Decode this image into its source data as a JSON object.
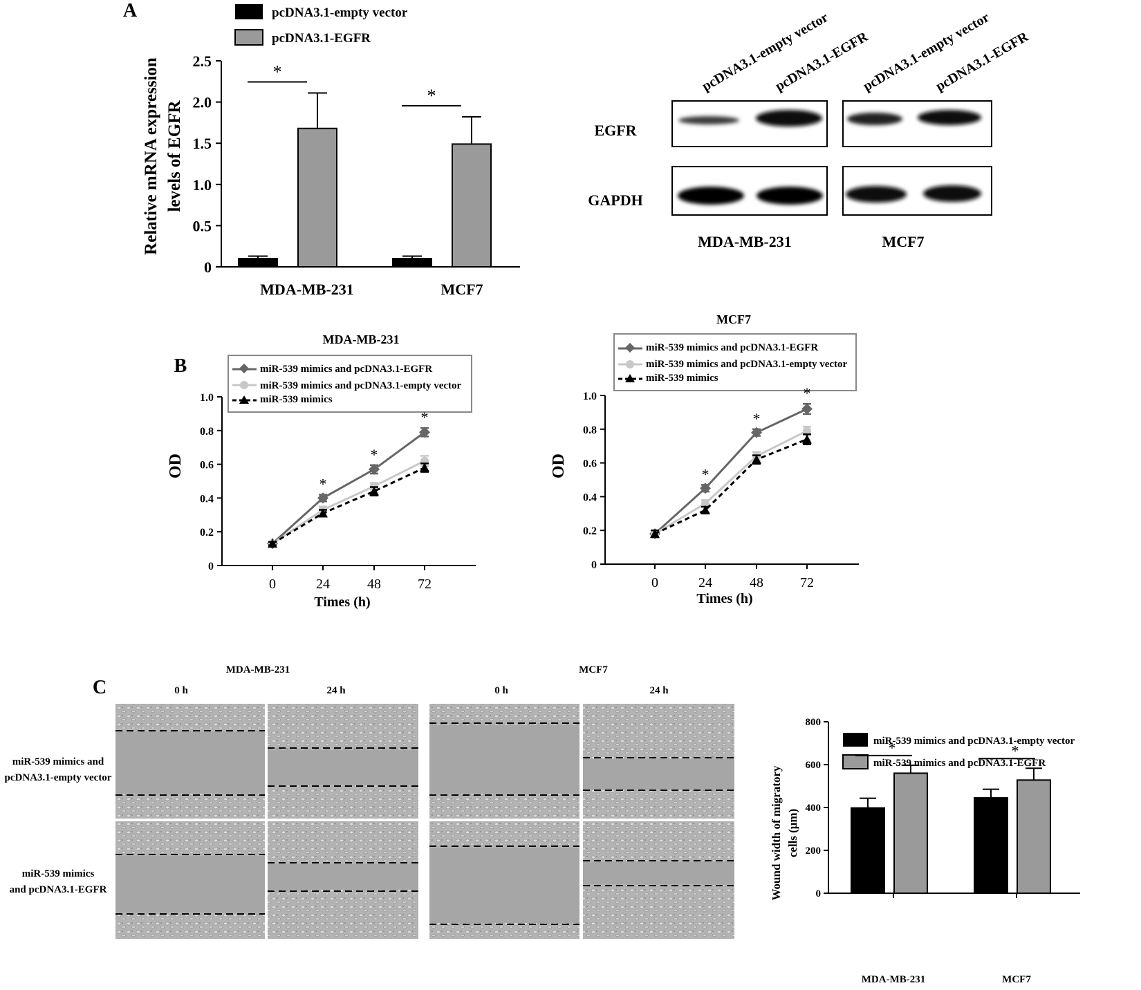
{
  "panel_labels": {
    "a": "A",
    "b": "B",
    "c": "C"
  },
  "colors": {
    "black": "#000000",
    "gray_bar": "#9a9a9a",
    "dark_gray_line": "#666666",
    "light_gray_line": "#c8c8c8"
  },
  "panelA_blot": {
    "lanes": [
      "pcDNA3.1-empty vector",
      "pcDNA3.1-EGFR",
      "pcDNA3.1-empty vector",
      "pcDNA3.1-EGFR"
    ],
    "rows": [
      "EGFR",
      "GAPDH"
    ],
    "groups": [
      "MDA-MB-231",
      "MCF7"
    ]
  },
  "panelC_images": {
    "group_titles": [
      "MDA-MB-231",
      "MCF7"
    ],
    "time_labels": [
      "0 h",
      "24 h",
      "0 h",
      "24 h"
    ],
    "row_labels": [
      [
        "miR-539 mimics and",
        "pcDNA3.1-empty vector"
      ],
      [
        "miR-539 mimics",
        "and pcDNA3.1-EGFR"
      ]
    ]
  },
  "chart_data": [
    {
      "id": "A-bar",
      "type": "bar",
      "title": "",
      "categories": [
        "MDA-MB-231",
        "MCF7"
      ],
      "series": [
        {
          "name": "pcDNA3.1-empty vector",
          "values": [
            0.1,
            0.1
          ],
          "errors": [
            0.03,
            0.03
          ]
        },
        {
          "name": "pcDNA3.1-EGFR",
          "values": [
            1.68,
            1.49
          ],
          "errors": [
            0.43,
            0.33
          ]
        }
      ],
      "ylabel_lines": [
        "Relative mRNA expression",
        "levels of EGFR"
      ],
      "ylim": [
        0,
        2.5
      ],
      "yticks": [
        "0",
        "0.5",
        "1.0",
        "1.5",
        "2.0",
        "2.5"
      ],
      "significance": [
        "*",
        "*"
      ]
    },
    {
      "id": "B-line-mda",
      "type": "line",
      "title": "MDA-MB-231",
      "x": [
        "0",
        "24",
        "48",
        "72"
      ],
      "xlabel": "Times (h)",
      "ylabel": "OD",
      "ylim": [
        0,
        1.0
      ],
      "yticks": [
        "0",
        "0.2",
        "0.4",
        "0.6",
        "0.8",
        "1.0"
      ],
      "series": [
        {
          "name": "miR-539 mimics and pcDNA3.1-EGFR",
          "values": [
            0.13,
            0.4,
            0.57,
            0.79
          ],
          "errors": [
            0.01,
            0.02,
            0.025,
            0.025
          ]
        },
        {
          "name": "miR-539 mimics and pcDNA3.1-empty vector",
          "values": [
            0.13,
            0.33,
            0.47,
            0.62
          ],
          "errors": [
            0.01,
            0.02,
            0.02,
            0.03
          ]
        },
        {
          "name": "miR-539 mimics",
          "values": [
            0.13,
            0.31,
            0.44,
            0.58
          ],
          "errors": [
            0.01,
            0.02,
            0.025,
            0.025
          ]
        }
      ],
      "significance": [
        "",
        "*",
        "*",
        "*"
      ],
      "legend": "top-left"
    },
    {
      "id": "B-line-mcf7",
      "type": "line",
      "title": "MCF7",
      "x": [
        "0",
        "24",
        "48",
        "72"
      ],
      "xlabel": "Times (h)",
      "ylabel": "OD",
      "ylim": [
        0,
        1.0
      ],
      "yticks": [
        "0",
        "0.2",
        "0.4",
        "0.6",
        "0.8",
        "1.0"
      ],
      "series": [
        {
          "name": "miR-539 mimics and pcDNA3.1-EGFR",
          "values": [
            0.18,
            0.45,
            0.78,
            0.92
          ],
          "errors": [
            0.02,
            0.02,
            0.02,
            0.03
          ]
        },
        {
          "name": "miR-539 mimics and pcDNA3.1-empty vector",
          "values": [
            0.18,
            0.36,
            0.64,
            0.79
          ],
          "errors": [
            0.02,
            0.02,
            0.025,
            0.025
          ]
        },
        {
          "name": "miR-539 mimics",
          "values": [
            0.18,
            0.32,
            0.62,
            0.74
          ],
          "errors": [
            0.02,
            0.02,
            0.025,
            0.03
          ]
        }
      ],
      "significance": [
        "",
        "*",
        "*",
        "*"
      ],
      "legend": "top"
    },
    {
      "id": "C-bar",
      "type": "bar",
      "title": "",
      "categories": [
        "MDA-MB-231",
        "MCF7"
      ],
      "series": [
        {
          "name": "miR-539 mimics and pcDNA3.1-empty vector",
          "values": [
            398,
            445
          ],
          "errors": [
            45,
            40
          ]
        },
        {
          "name": "miR-539 mimics and pcDNA3.1-EGFR",
          "values": [
            560,
            528
          ],
          "errors": [
            37,
            55
          ]
        }
      ],
      "ylabel_lines": [
        "Wound width of migratory",
        "cells (μm)"
      ],
      "ylim": [
        0,
        800
      ],
      "yticks": [
        "0",
        "200",
        "400",
        "600",
        "800"
      ],
      "significance": [
        "*",
        "*"
      ]
    }
  ]
}
